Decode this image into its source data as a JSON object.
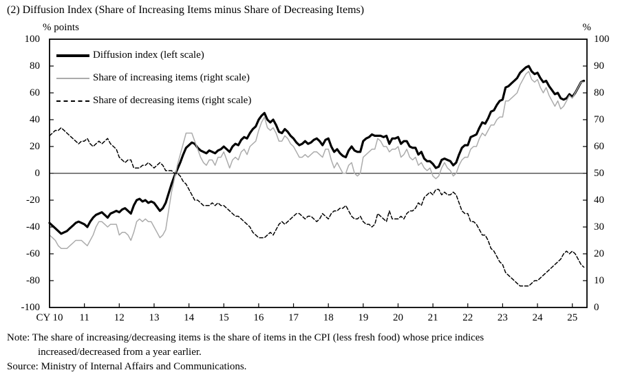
{
  "title": "(2) Diffusion Index (Share of Increasing Items minus Share of Decreasing Items)",
  "axis": {
    "left_unit": "% points",
    "right_unit": "%",
    "left_ticks": [
      "100",
      "80",
      "60",
      "40",
      "20",
      "0",
      "-20",
      "-40",
      "-60",
      "-80",
      "-100"
    ],
    "right_ticks": [
      "100",
      "90",
      "80",
      "70",
      "60",
      "50",
      "40",
      "30",
      "20",
      "10",
      "0"
    ],
    "x_ticks": [
      "CY 10",
      "11",
      "12",
      "13",
      "14",
      "15",
      "16",
      "17",
      "18",
      "19",
      "20",
      "21",
      "22",
      "23",
      "24",
      "25"
    ]
  },
  "notes": {
    "note_line1": "Note: The share of increasing/decreasing items is the share of items in the CPI (less fresh food) whose price indices",
    "note_line2": "increased/decreased from a year earlier.",
    "source": "Source: Ministry of Internal Affairs and Communications."
  },
  "chart_data": {
    "type": "line",
    "title": "(2) Diffusion Index (Share of Increasing Items minus Share of Decreasing Items)",
    "x_start_year": 2010,
    "x_step_months": 1,
    "x_end": 2025.42,
    "left_axis": {
      "label": "% points",
      "min": -100,
      "max": 100,
      "step": 20
    },
    "right_axis": {
      "label": "%",
      "min": 0,
      "max": 100,
      "step": 10
    },
    "zero_reference_line": true,
    "grid": false,
    "legend_position": "top-left",
    "series": [
      {
        "name": "Diffusion index (left scale)",
        "scale": "left",
        "color": "#000000",
        "width": 3.2,
        "dash": null,
        "values": [
          -37,
          -39,
          -41,
          -43,
          -45,
          -44,
          -43,
          -41,
          -39,
          -37,
          -36,
          -37,
          -38,
          -40,
          -36,
          -33,
          -31,
          -30,
          -29,
          -31,
          -33,
          -30,
          -29,
          -28,
          -29,
          -27,
          -26,
          -28,
          -30,
          -24,
          -20,
          -19,
          -21,
          -20,
          -22,
          -21,
          -22,
          -25,
          -28,
          -26,
          -22,
          -15,
          -8,
          -2,
          3,
          8,
          14,
          19,
          21,
          23,
          22,
          19,
          17,
          16,
          15,
          17,
          16,
          15,
          17,
          18,
          20,
          18,
          16,
          20,
          22,
          21,
          25,
          27,
          26,
          30,
          33,
          35,
          40,
          43,
          45,
          40,
          38,
          40,
          36,
          31,
          30,
          33,
          31,
          28,
          26,
          23,
          21,
          22,
          24,
          22,
          23,
          25,
          26,
          24,
          21,
          25,
          26,
          20,
          16,
          18,
          15,
          13,
          12,
          17,
          20,
          17,
          16,
          16,
          24,
          26,
          27,
          29,
          28,
          28,
          28,
          27,
          28,
          22,
          26,
          26,
          27,
          22,
          24,
          24,
          20,
          19,
          19,
          14,
          16,
          11,
          9,
          9,
          7,
          4,
          5,
          10,
          11,
          10,
          9,
          6,
          8,
          14,
          19,
          21,
          21,
          27,
          28,
          29,
          34,
          38,
          37,
          41,
          46,
          47,
          51,
          54,
          55,
          64,
          65,
          67,
          69,
          71,
          75,
          77,
          79,
          80,
          76,
          74,
          75,
          71,
          68,
          69,
          65,
          62,
          59,
          60,
          56,
          55,
          56,
          59,
          57,
          60,
          64,
          68,
          69
        ]
      },
      {
        "name": "Share of increasing items (right scale)",
        "scale": "right",
        "color": "#ababab",
        "width": 1.5,
        "dash": null,
        "values": [
          27,
          26,
          25,
          23,
          22,
          22,
          22,
          23,
          24,
          25,
          25,
          25,
          24,
          23,
          25,
          27,
          30,
          32,
          32,
          31,
          30,
          31,
          31,
          31,
          27,
          28,
          28,
          27,
          25,
          28,
          32,
          33,
          32,
          33,
          32,
          32,
          30,
          28,
          26,
          27,
          29,
          36,
          43,
          48,
          53,
          57,
          61,
          65,
          65,
          65,
          62,
          59,
          56,
          54,
          53,
          55,
          55,
          53,
          56,
          56,
          58,
          55,
          52,
          55,
          56,
          55,
          58,
          59,
          57,
          60,
          61,
          62,
          66,
          69,
          71,
          67,
          66,
          67,
          65,
          62,
          62,
          64,
          63,
          61,
          60,
          58,
          56,
          56,
          57,
          56,
          57,
          58,
          58,
          57,
          56,
          59,
          59,
          55,
          52,
          54,
          52,
          50,
          50,
          53,
          54,
          50,
          49,
          50,
          56,
          57,
          58,
          59,
          59,
          63,
          62,
          60,
          60,
          58,
          59,
          59,
          60,
          56,
          57,
          59,
          56,
          55,
          56,
          53,
          54,
          52,
          51,
          52,
          49,
          48,
          49,
          52,
          54,
          52,
          51,
          49,
          50,
          53,
          55,
          56,
          56,
          59,
          60,
          60,
          63,
          65,
          64,
          66,
          68,
          68,
          70,
          71,
          71,
          77,
          77,
          78,
          79,
          80,
          83,
          85,
          87,
          88,
          85,
          84,
          85,
          82,
          80,
          82,
          79,
          77,
          75,
          77,
          74,
          75,
          77,
          79,
          78,
          80,
          82,
          84,
          84
        ]
      },
      {
        "name": "Share of decreasing items (right scale)",
        "scale": "right",
        "color": "#000000",
        "width": 1.5,
        "dash": "5 3",
        "values": [
          64,
          65,
          66,
          66,
          67,
          66,
          65,
          64,
          63,
          62,
          61,
          62,
          62,
          63,
          61,
          60,
          61,
          62,
          61,
          62,
          63,
          61,
          60,
          59,
          56,
          55,
          54,
          55,
          55,
          52,
          52,
          52,
          53,
          53,
          54,
          53,
          52,
          53,
          54,
          53,
          51,
          51,
          51,
          50,
          50,
          49,
          47,
          46,
          44,
          42,
          40,
          40,
          39,
          38,
          38,
          38,
          39,
          38,
          39,
          38,
          38,
          37,
          36,
          35,
          34,
          34,
          33,
          32,
          31,
          30,
          28,
          27,
          26,
          26,
          26,
          27,
          28,
          27,
          29,
          31,
          32,
          31,
          32,
          33,
          34,
          35,
          35,
          34,
          33,
          34,
          34,
          33,
          32,
          33,
          35,
          34,
          33,
          35,
          36,
          36,
          37,
          37,
          38,
          36,
          34,
          33,
          33,
          34,
          32,
          31,
          31,
          30,
          31,
          35,
          34,
          33,
          32,
          36,
          33,
          33,
          33,
          34,
          33,
          35,
          36,
          36,
          37,
          39,
          38,
          41,
          42,
          43,
          42,
          44,
          44,
          42,
          43,
          42,
          42,
          43,
          42,
          39,
          36,
          35,
          35,
          32,
          32,
          31,
          29,
          27,
          27,
          25,
          22,
          21,
          19,
          17,
          16,
          13,
          12,
          11,
          10,
          9,
          8,
          8,
          8,
          8,
          9,
          10,
          10,
          11,
          12,
          13,
          14,
          15,
          16,
          17,
          18,
          20,
          21,
          20,
          21,
          20,
          18,
          16,
          15
        ]
      }
    ]
  }
}
